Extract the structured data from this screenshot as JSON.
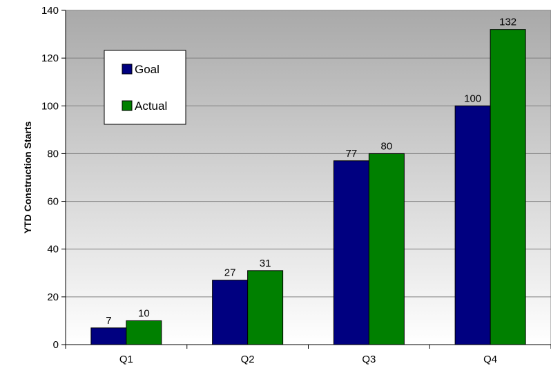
{
  "chart_data": {
    "type": "bar",
    "categories": [
      "Q1",
      "Q2",
      "Q3",
      "Q4"
    ],
    "series": [
      {
        "name": "Goal",
        "color": "#000080",
        "values": [
          7,
          27,
          77,
          100
        ]
      },
      {
        "name": "Actual",
        "color": "#008000",
        "values": [
          10,
          31,
          80,
          132
        ]
      }
    ],
    "title": "",
    "xlabel": "",
    "ylabel": "YTD Construction Starts",
    "ylim": [
      0,
      140
    ],
    "yticks": [
      "0",
      "20",
      "40",
      "60",
      "80",
      "100",
      "120",
      "140"
    ],
    "grid": true,
    "legend_position": "top-left",
    "plot_background": "gradient gray"
  }
}
